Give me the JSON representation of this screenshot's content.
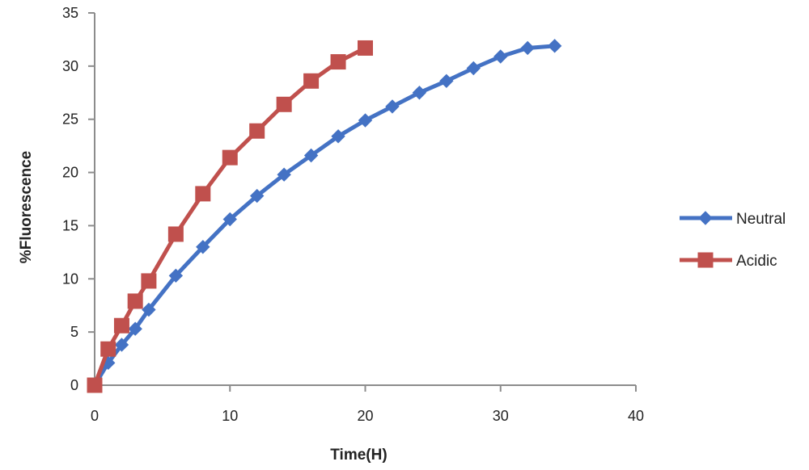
{
  "chart_data": {
    "type": "line",
    "title": "",
    "xlabel": "Time(H)",
    "ylabel": "%Fluorescence",
    "xlim": [
      0,
      40
    ],
    "ylim": [
      0,
      35
    ],
    "x_ticks": [
      0,
      10,
      20,
      30,
      40
    ],
    "y_ticks": [
      0,
      5,
      10,
      15,
      20,
      25,
      30,
      35
    ],
    "grid": false,
    "legend_position": "right",
    "series": [
      {
        "name": "Neutral",
        "color": "#4472C4",
        "marker": "diamond",
        "x": [
          0,
          1,
          2,
          3,
          4,
          6,
          8,
          10,
          12,
          14,
          16,
          18,
          20,
          22,
          24,
          26,
          28,
          30,
          32,
          34
        ],
        "y": [
          0,
          2.1,
          3.8,
          5.3,
          7.1,
          10.3,
          13.0,
          15.6,
          17.8,
          19.8,
          21.6,
          23.4,
          24.9,
          26.2,
          27.5,
          28.6,
          29.8,
          30.9,
          31.7,
          31.9
        ]
      },
      {
        "name": "Acidic",
        "color": "#C0504D",
        "marker": "square",
        "x": [
          0,
          1,
          2,
          3,
          4,
          6,
          8,
          10,
          12,
          14,
          16,
          18,
          20
        ],
        "y": [
          0,
          3.4,
          5.6,
          7.9,
          9.8,
          14.2,
          18.0,
          21.4,
          23.9,
          26.4,
          28.6,
          30.4,
          31.7
        ]
      }
    ]
  }
}
